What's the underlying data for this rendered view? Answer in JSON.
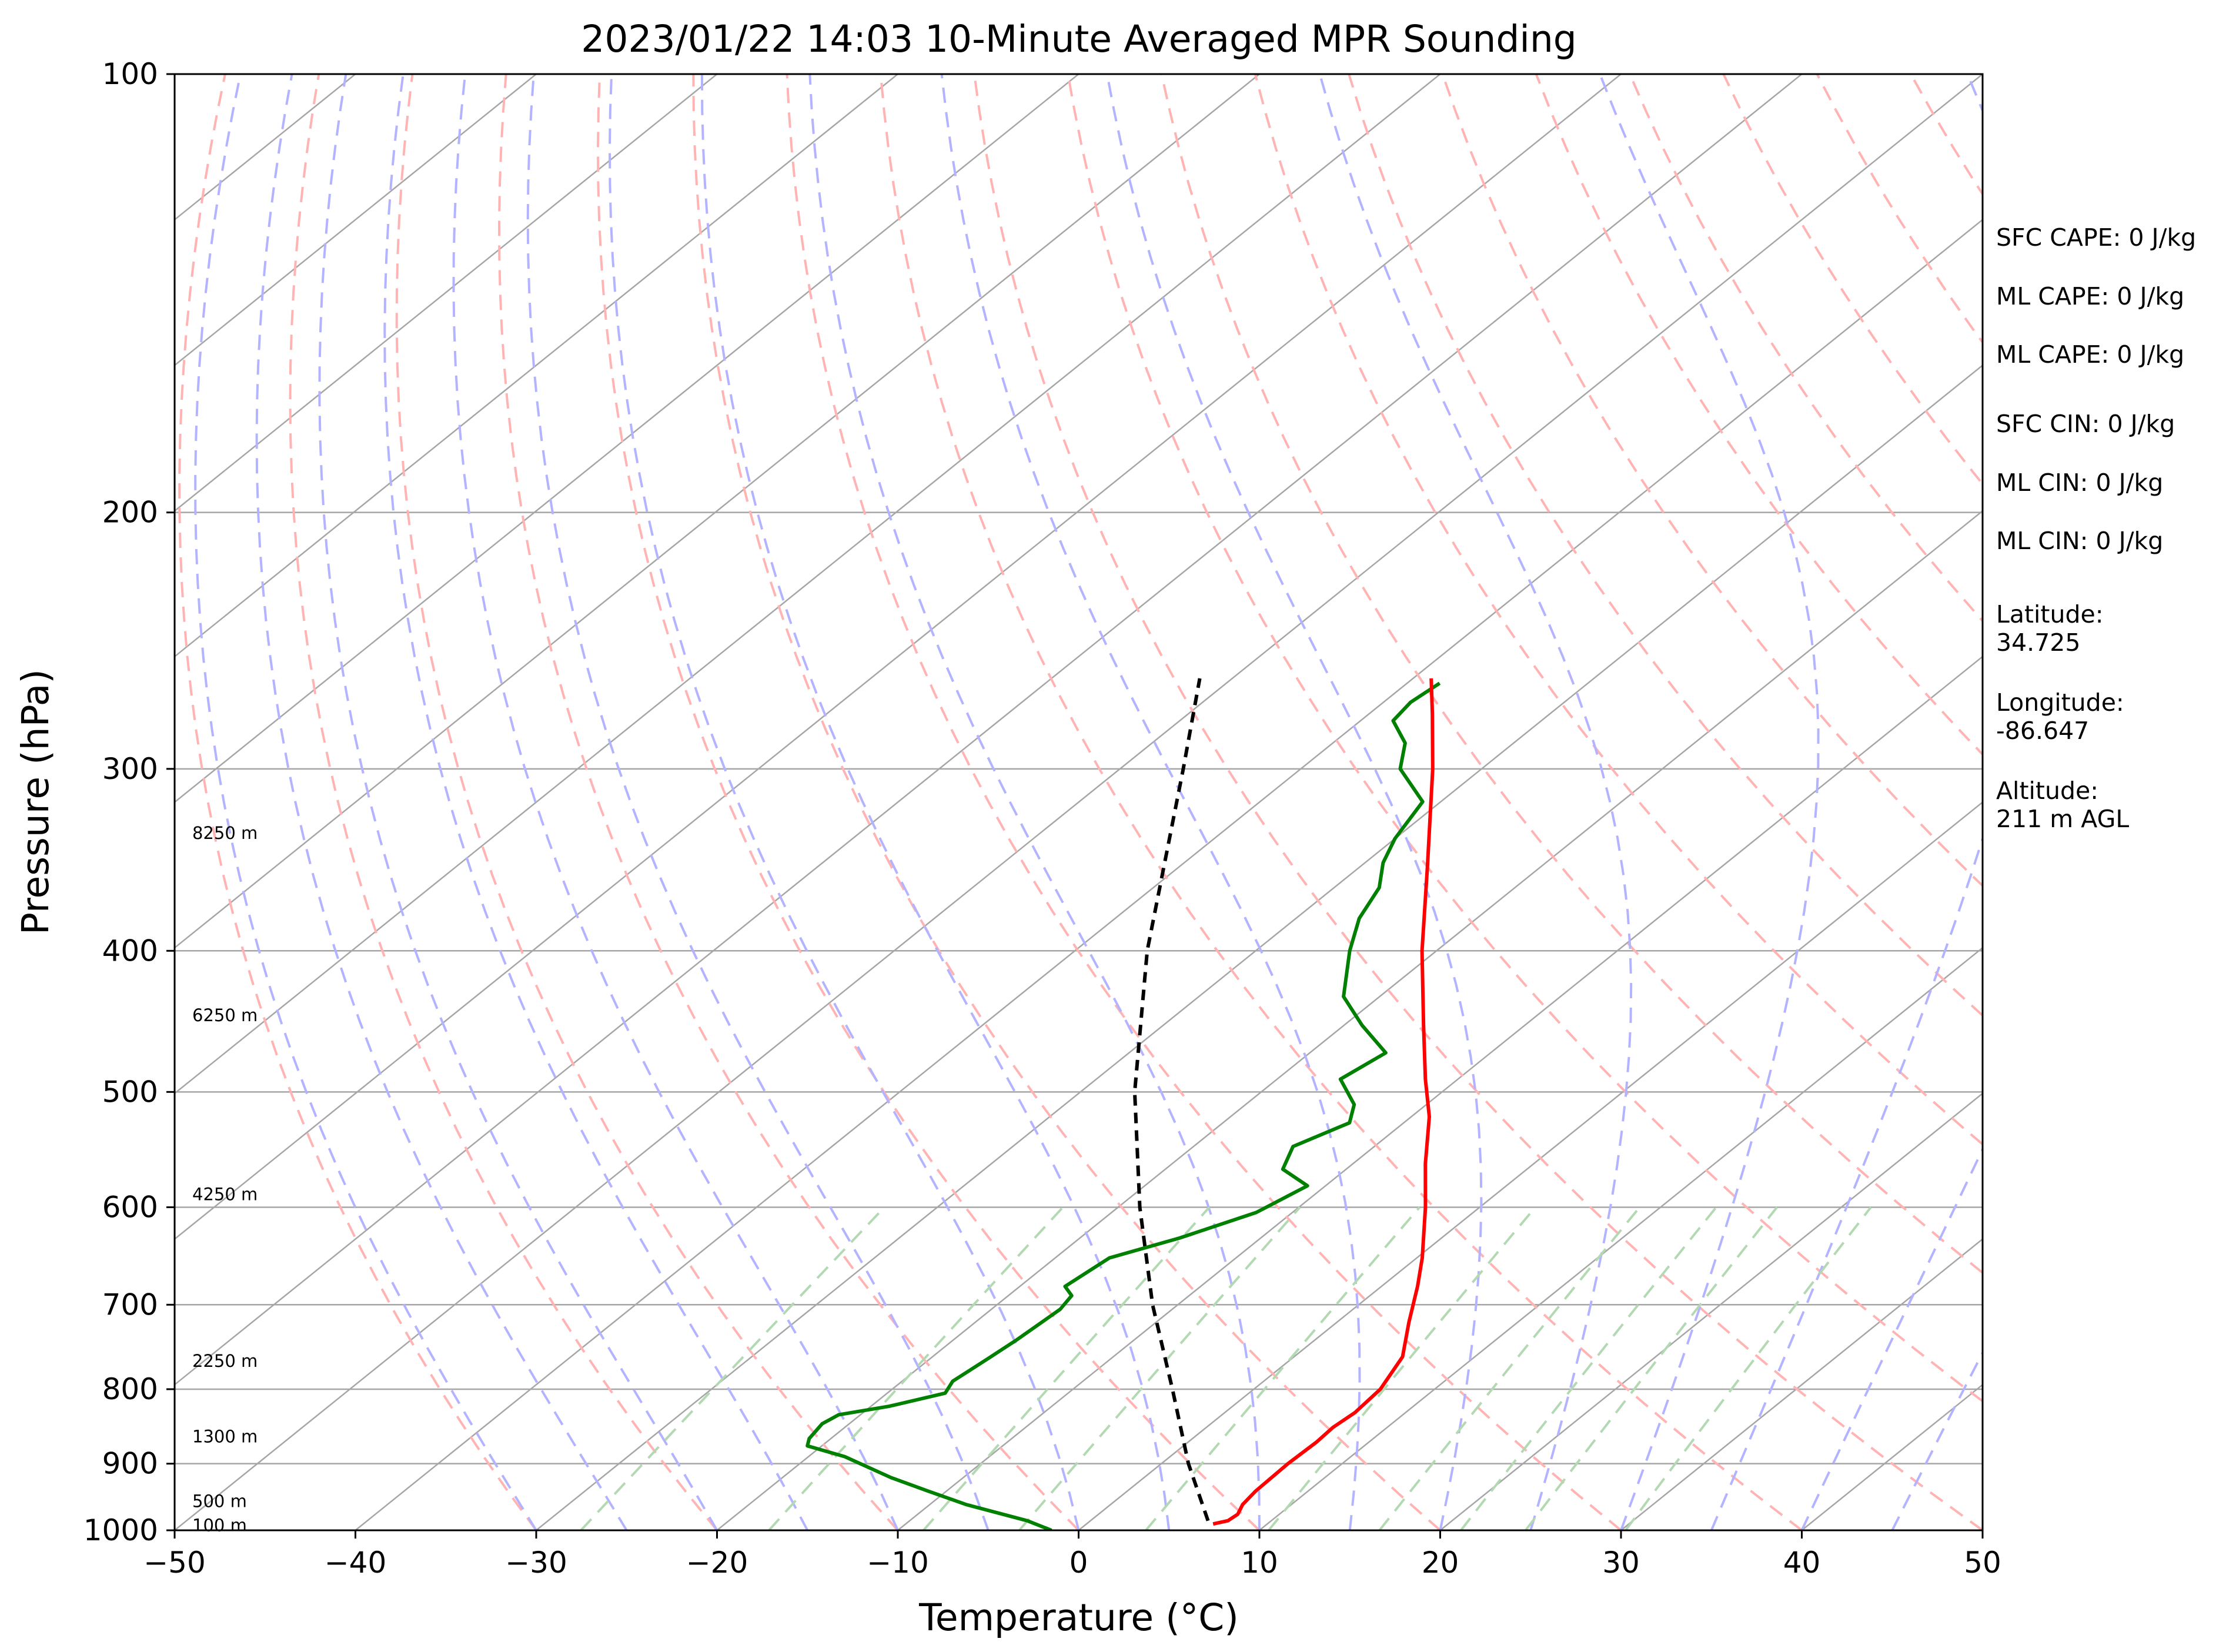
{
  "chart_data": {
    "type": "line",
    "subtype": "skew-t log-p sounding",
    "title": "2023/01/22 14:03 10-Minute Averaged MPR Sounding",
    "xlabel": "Temperature (°C)",
    "ylabel": "Pressure (hPa)",
    "xlim": [
      -50,
      50
    ],
    "ylim": [
      1000,
      100
    ],
    "y_scale": "log",
    "x_ticks": [
      -50,
      -40,
      -30,
      -20,
      -10,
      0,
      10,
      20,
      30,
      40,
      50
    ],
    "x_tick_labels": [
      "−50",
      "−40",
      "−30",
      "−20",
      "−10",
      "0",
      "10",
      "20",
      "30",
      "40",
      "50"
    ],
    "y_ticks": [
      100,
      200,
      300,
      400,
      500,
      600,
      700,
      800,
      900,
      1000
    ],
    "y_tick_labels": [
      "100",
      "200",
      "300",
      "400",
      "500",
      "600",
      "700",
      "800",
      "900",
      "1000"
    ],
    "grid": "horizontal isobars",
    "colors": {
      "temperature": "#ff0000",
      "dewpoint": "#008000",
      "parcel": "#000000",
      "isotherm": "#a6a6a6",
      "dry_adiabat": "#ffb3b3",
      "moist_adiabat": "#b3b3ff",
      "mixing_ratio": "#b3d9b3"
    },
    "series": [
      {
        "key": "temperature",
        "style": "solid",
        "points": [
          [
            990,
            7.0
          ],
          [
            985,
            7.6
          ],
          [
            975,
            7.7
          ],
          [
            960,
            7.3
          ],
          [
            940,
            7.1
          ],
          [
            900,
            7.0
          ],
          [
            870,
            7.1
          ],
          [
            850,
            7.0
          ],
          [
            830,
            7.2
          ],
          [
            800,
            7.0
          ],
          [
            760,
            6.0
          ],
          [
            720,
            4.0
          ],
          [
            680,
            2.0
          ],
          [
            650,
            0.3
          ],
          [
            600,
            -3.0
          ],
          [
            560,
            -6.0
          ],
          [
            520,
            -9.0
          ],
          [
            490,
            -11.8
          ],
          [
            450,
            -15.6
          ],
          [
            400,
            -20.8
          ],
          [
            350,
            -26.3
          ],
          [
            300,
            -32.7
          ],
          [
            275,
            -36.5
          ],
          [
            260,
            -39.0
          ]
        ]
      },
      {
        "key": "dewpoint",
        "style": "solid",
        "points": [
          [
            1000,
            -1.5
          ],
          [
            985,
            -3.5
          ],
          [
            960,
            -8.0
          ],
          [
            940,
            -11.0
          ],
          [
            920,
            -14.0
          ],
          [
            890,
            -18.0
          ],
          [
            875,
            -20.8
          ],
          [
            865,
            -21.2
          ],
          [
            845,
            -21.5
          ],
          [
            833,
            -21.2
          ],
          [
            822,
            -19.0
          ],
          [
            805,
            -16.8
          ],
          [
            790,
            -17.2
          ],
          [
            762,
            -16.8
          ],
          [
            740,
            -16.5
          ],
          [
            705,
            -16.2
          ],
          [
            690,
            -16.5
          ],
          [
            680,
            -17.5
          ],
          [
            650,
            -17.0
          ],
          [
            630,
            -14.5
          ],
          [
            605,
            -12.0
          ],
          [
            580,
            -11.0
          ],
          [
            565,
            -13.5
          ],
          [
            545,
            -14.5
          ],
          [
            525,
            -13.0
          ],
          [
            510,
            -14.0
          ],
          [
            490,
            -16.5
          ],
          [
            470,
            -15.8
          ],
          [
            450,
            -19.0
          ],
          [
            430,
            -22.0
          ],
          [
            400,
            -24.8
          ],
          [
            380,
            -26.5
          ],
          [
            362,
            -27.5
          ],
          [
            348,
            -29.0
          ],
          [
            335,
            -30.0
          ],
          [
            316,
            -31.0
          ],
          [
            300,
            -34.5
          ],
          [
            288,
            -36.0
          ],
          [
            278,
            -38.2
          ],
          [
            270,
            -38.5
          ],
          [
            262,
            -38.2
          ]
        ]
      },
      {
        "key": "parcel",
        "style": "dashed",
        "points": [
          [
            985,
            6.5
          ],
          [
            900,
            1.5
          ],
          [
            800,
            -4.5
          ],
          [
            700,
            -11.4
          ],
          [
            600,
            -18.8
          ],
          [
            500,
            -27.0
          ],
          [
            400,
            -36.0
          ],
          [
            300,
            -46.5
          ],
          [
            260,
            -51.8
          ]
        ]
      }
    ],
    "altitude_labels": [
      {
        "text": "8250 m",
        "pressure": 332
      },
      {
        "text": "6250 m",
        "pressure": 443
      },
      {
        "text": "4250 m",
        "pressure": 588
      },
      {
        "text": "2250 m",
        "pressure": 765
      },
      {
        "text": "1300 m",
        "pressure": 862
      },
      {
        "text": "500 m",
        "pressure": 955
      },
      {
        "text": "100 m",
        "pressure": 992
      }
    ],
    "annotations": [
      {
        "lines": [
          "SFC CAPE: 0 J/kg"
        ]
      },
      {
        "lines": [
          "ML CAPE: 0 J/kg"
        ]
      },
      {
        "lines": [
          "ML CAPE: 0 J/kg"
        ]
      },
      {
        "lines": [
          "SFC CIN: 0 J/kg"
        ]
      },
      {
        "lines": [
          "ML CIN: 0 J/kg"
        ]
      },
      {
        "lines": [
          "ML CIN: 0 J/kg"
        ]
      },
      {
        "lines": [
          "Latitude:",
          "34.725"
        ]
      },
      {
        "lines": [
          "Longitude:",
          "-86.647"
        ]
      },
      {
        "lines": [
          "Altitude:",
          "211 m AGL"
        ]
      }
    ]
  }
}
